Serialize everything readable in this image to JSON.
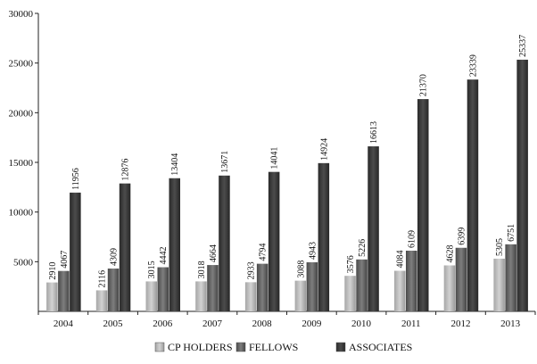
{
  "chart_data": {
    "type": "bar",
    "title": "",
    "xlabel": "",
    "ylabel": "",
    "categories": [
      "2004",
      "2005",
      "2006",
      "2007",
      "2008",
      "2009",
      "2010",
      "2011",
      "2012",
      "2013"
    ],
    "ylim": [
      0,
      30000
    ],
    "yticks": [
      "5000",
      "10000",
      "15000",
      "20000",
      "25000",
      "30000"
    ],
    "grid": false,
    "legend_position": "bottom",
    "series": [
      {
        "name": "CP HOLDERS",
        "values": [
          2910,
          2116,
          3015,
          3018,
          2933,
          3088,
          3576,
          4084,
          4628,
          5305
        ],
        "labels": [
          "2910",
          "2116",
          "3015",
          "3018",
          "2933",
          "3088",
          "3576",
          "4084",
          "4628",
          "5305"
        ],
        "color": "#b8b8b8"
      },
      {
        "name": "FELLOWS",
        "values": [
          4067,
          4309,
          4442,
          4664,
          4794,
          4943,
          5226,
          6109,
          6399,
          6751
        ],
        "labels": [
          "4067",
          "4309",
          "4442",
          "4664",
          "4794",
          "4943",
          "5226",
          "6109",
          "6399",
          "6751"
        ],
        "color": "#6a6a6a"
      },
      {
        "name": "ASSOCIATES",
        "values": [
          11956,
          12876,
          13404,
          13671,
          14041,
          14924,
          16613,
          21370,
          23339,
          25337
        ],
        "labels": [
          "11956",
          "12876",
          "13404",
          "13671",
          "14041",
          "14924",
          "16613",
          "21370",
          "23339",
          "25337"
        ],
        "color": "#3a3a3a"
      }
    ]
  }
}
